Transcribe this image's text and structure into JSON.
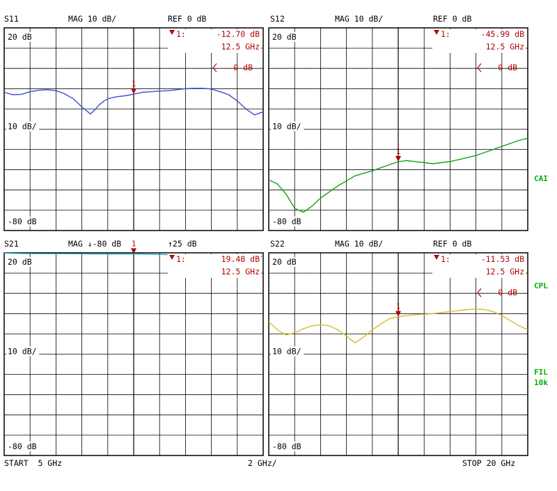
{
  "colors": {
    "grid": "#000000",
    "marker": "#b40000",
    "ref": "#b40000",
    "s11": "#3a4fc7",
    "s12": "#14a014",
    "s21": "#19a8b8",
    "s22": "#d4bf2a",
    "side": "#00b400"
  },
  "footer": {
    "start": "START  5 GHz",
    "span": "2 GHz/",
    "stop": "STOP 20 GHz"
  },
  "side_labels": {
    "cal": "CAI",
    "cpl": "CPL",
    "fil": "FIL",
    "fil_bw": "10k"
  },
  "chart_data": [
    {
      "type": "line",
      "param": "S11",
      "header": {
        "mag": "MAG 10 dB/",
        "ref": "REF 0 dB"
      },
      "scale_labels": {
        "top": "20 dB",
        "mid": "10 dB/",
        "bottom": "-80 dB"
      },
      "ref_label": "0 dB",
      "marker": {
        "index": "1",
        "label": "1:",
        "value": "-12.70 dB",
        "freq": "12.5 GHz",
        "x_ghz": 12.5,
        "y_db": -12.7
      },
      "x_range_ghz": [
        5,
        20
      ],
      "y_range_db": [
        -80,
        20
      ],
      "series": [
        {
          "x": [
            5,
            5.5,
            6,
            6.5,
            7,
            7.5,
            8,
            8.5,
            9,
            9.5,
            10,
            10.3,
            10.5,
            10.8,
            11,
            11.5,
            12,
            12.5,
            13,
            13.5,
            14,
            14.5,
            15,
            15.5,
            16,
            16.5,
            17,
            17.5,
            18,
            18.5,
            19,
            19.5,
            19.8,
            20
          ],
          "y": [
            -11.8,
            -13,
            -12.8,
            -11.5,
            -10.8,
            -10.5,
            -11,
            -12.5,
            -15,
            -19,
            -22.5,
            -20,
            -18,
            -16,
            -15,
            -14,
            -13.5,
            -12.7,
            -11.8,
            -11.5,
            -11.2,
            -11,
            -10.5,
            -10,
            -9.8,
            -9.8,
            -10.2,
            -11.5,
            -13,
            -16,
            -20,
            -23,
            -22,
            -21.5
          ]
        }
      ]
    },
    {
      "type": "line",
      "param": "S12",
      "header": {
        "mag": "MAG 10 dB/",
        "ref": "REF 0 dB"
      },
      "scale_labels": {
        "top": "20 dB",
        "mid": "10 dB/",
        "bottom": "-80 dB"
      },
      "ref_label": "0 dB",
      "marker": {
        "index": "1",
        "label": "1:",
        "value": "-45.99 dB",
        "freq": "12.5 GHz",
        "x_ghz": 12.5,
        "y_db": -46
      },
      "x_range_ghz": [
        5,
        20
      ],
      "y_range_db": [
        -80,
        20
      ],
      "series": [
        {
          "x": [
            5,
            5.5,
            6,
            6.5,
            7,
            7.5,
            8,
            8.5,
            9,
            9.5,
            10,
            11,
            12,
            12.5,
            13,
            13.5,
            14,
            14.5,
            15,
            15.5,
            16,
            16.5,
            17,
            17.5,
            18,
            18.5,
            19,
            19.5,
            20
          ],
          "y": [
            -55,
            -57,
            -62,
            -69,
            -71,
            -68,
            -64,
            -61,
            -58,
            -55.5,
            -53,
            -50.5,
            -47.5,
            -46,
            -45.5,
            -46,
            -46.5,
            -47,
            -46.5,
            -46,
            -45,
            -44,
            -43,
            -41.5,
            -40,
            -38.5,
            -37,
            -35.5,
            -34.5
          ]
        }
      ]
    },
    {
      "type": "line",
      "param": "S21",
      "header": {
        "mag": "MAG ↓-80 dB",
        "ref": "↑25 dB"
      },
      "scale_labels": {
        "top": "20 dB",
        "mid": "10 dB/",
        "bottom": "-80 dB"
      },
      "ref_label": "",
      "marker": {
        "index": "1",
        "label": "1:",
        "value": "19.48 dB",
        "freq": "12.5 GHz",
        "x_ghz": 12.5,
        "y_db": 19.48
      },
      "x_range_ghz": [
        5,
        20
      ],
      "y_range_db": [
        -80,
        20
      ],
      "series": [
        {
          "x": [
            5,
            6,
            7,
            8,
            9,
            10,
            11,
            12,
            12.5,
            13,
            14,
            15,
            16,
            17,
            18,
            19,
            20
          ],
          "y": [
            19.9,
            19.7,
            19.6,
            19.6,
            19.55,
            19.5,
            19.5,
            19.5,
            19.48,
            19.4,
            19.2,
            19,
            18.8,
            18.6,
            18.4,
            18.3,
            18.2
          ]
        }
      ]
    },
    {
      "type": "line",
      "param": "S22",
      "header": {
        "mag": "MAG 10 dB/",
        "ref": "REF 0 dB"
      },
      "scale_labels": {
        "top": "20 dB",
        "mid": "10 dB/",
        "bottom": "-80 dB"
      },
      "ref_label": "0 dB",
      "marker": {
        "index": "1",
        "label": "1:",
        "value": "-11.53 dB",
        "freq": "12.5 GHz",
        "x_ghz": 12.5,
        "y_db": -11.5
      },
      "x_range_ghz": [
        5,
        20
      ],
      "y_range_db": [
        -80,
        20
      ],
      "series": [
        {
          "x": [
            5,
            5.5,
            6,
            6.5,
            7,
            7.5,
            8,
            8.5,
            9,
            9.5,
            10,
            10.5,
            11,
            11.5,
            12,
            12.5,
            13,
            13.5,
            14,
            14.5,
            15,
            15.5,
            16,
            16.5,
            17,
            17.5,
            18,
            18.5,
            19,
            19.5,
            20
          ],
          "y": [
            -14,
            -18,
            -20.5,
            -19.5,
            -17.5,
            -16,
            -15.5,
            -16,
            -18,
            -21,
            -24.5,
            -21.5,
            -18,
            -15,
            -12.5,
            -11.5,
            -11,
            -10.5,
            -10.3,
            -10,
            -9.5,
            -9,
            -8.5,
            -8,
            -7.8,
            -8,
            -9,
            -11,
            -13.5,
            -16,
            -18
          ]
        }
      ]
    }
  ]
}
